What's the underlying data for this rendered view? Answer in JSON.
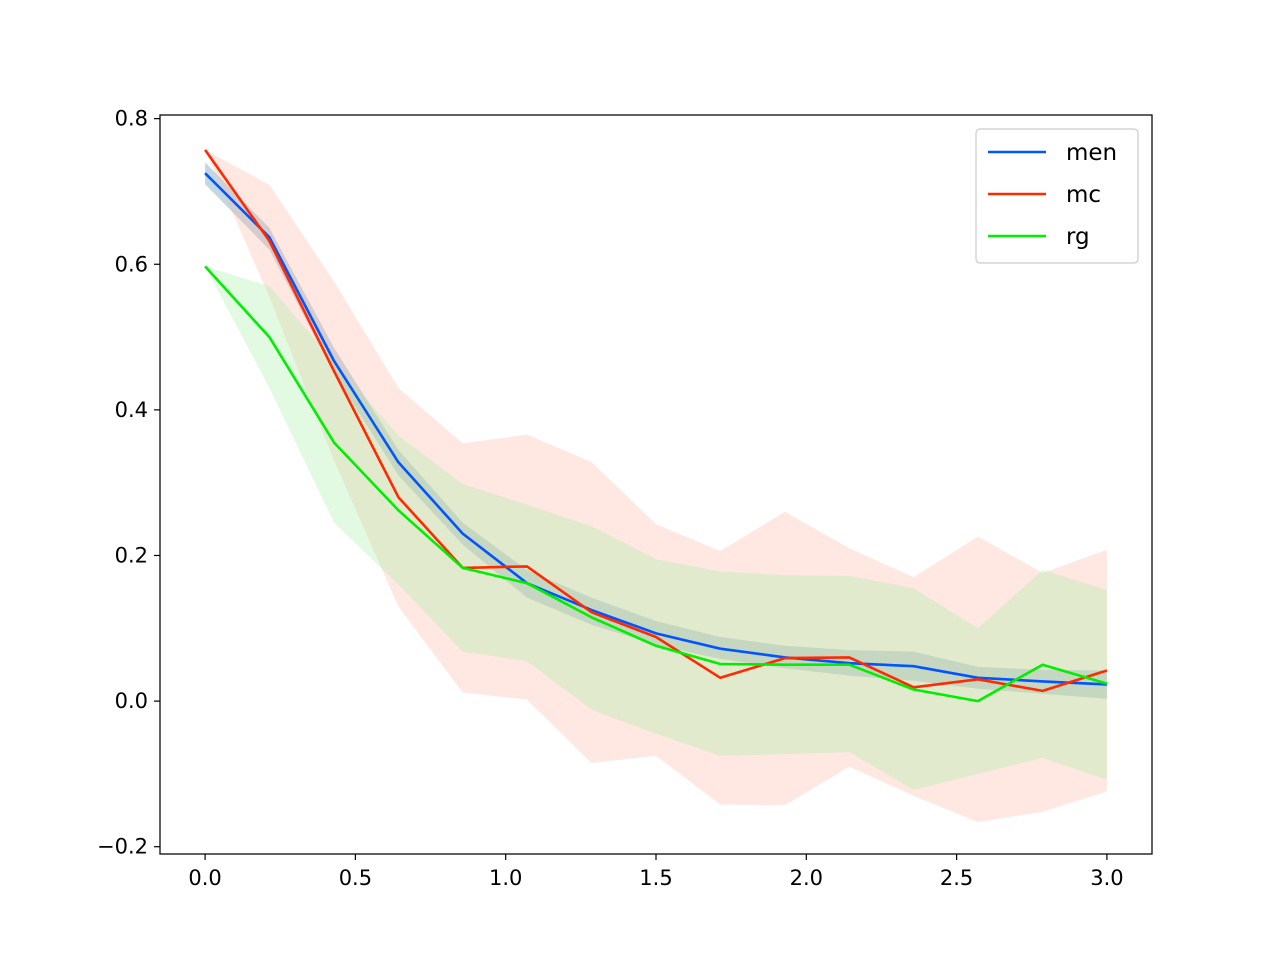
{
  "chart_data": {
    "type": "line",
    "title": "",
    "xlabel": "",
    "ylabel": "",
    "xlim": [
      -0.15,
      3.15
    ],
    "ylim": [
      -0.21,
      0.805
    ],
    "x_ticks": [
      0.0,
      0.5,
      1.0,
      1.5,
      2.0,
      2.5,
      3.0
    ],
    "x_tick_labels": [
      "0.0",
      "0.5",
      "1.0",
      "1.5",
      "2.0",
      "2.5",
      "3.0"
    ],
    "y_ticks": [
      -0.2,
      0.0,
      0.2,
      0.4,
      0.6,
      0.8
    ],
    "y_tick_labels": [
      "−0.2",
      "0.0",
      "0.2",
      "0.4",
      "0.6",
      "0.8"
    ],
    "grid": false,
    "legend_position": "top-right",
    "x": [
      0.0,
      0.214,
      0.429,
      0.643,
      0.857,
      1.071,
      1.286,
      1.5,
      1.714,
      1.929,
      2.143,
      2.357,
      2.571,
      2.786,
      3.0
    ],
    "series": [
      {
        "name": "men",
        "color": "#0055ff",
        "band_color": "#4f8fa8",
        "band_opacity": 0.35,
        "values": [
          0.725,
          0.637,
          0.467,
          0.328,
          0.23,
          0.162,
          0.125,
          0.093,
          0.072,
          0.06,
          0.052,
          0.048,
          0.032,
          0.027,
          0.023
        ],
        "lower": [
          0.71,
          0.62,
          0.45,
          0.31,
          0.215,
          0.142,
          0.105,
          0.077,
          0.058,
          0.045,
          0.035,
          0.028,
          0.017,
          0.01,
          0.003
        ],
        "upper": [
          0.74,
          0.65,
          0.485,
          0.345,
          0.245,
          0.18,
          0.142,
          0.11,
          0.088,
          0.076,
          0.07,
          0.068,
          0.047,
          0.043,
          0.042
        ]
      },
      {
        "name": "mc",
        "color": "#ff2a00",
        "band_color": "#ffb3a6",
        "band_opacity": 0.32,
        "values": [
          0.757,
          0.632,
          0.453,
          0.28,
          0.183,
          0.185,
          0.122,
          0.088,
          0.032,
          0.059,
          0.06,
          0.019,
          0.03,
          0.014,
          0.042
        ],
        "lower": [
          0.757,
          0.555,
          0.33,
          0.13,
          0.012,
          0.002,
          -0.085,
          -0.075,
          -0.142,
          -0.143,
          -0.09,
          -0.13,
          -0.166,
          -0.152,
          -0.124
        ],
        "upper": [
          0.757,
          0.709,
          0.576,
          0.43,
          0.354,
          0.366,
          0.328,
          0.243,
          0.206,
          0.26,
          0.21,
          0.17,
          0.226,
          0.176,
          0.208
        ]
      },
      {
        "name": "rg",
        "color": "#00ee00",
        "band_color": "#a6f0a6",
        "band_opacity": 0.32,
        "values": [
          0.597,
          0.5,
          0.355,
          0.262,
          0.183,
          0.162,
          0.115,
          0.076,
          0.051,
          0.05,
          0.05,
          0.016,
          0.0,
          0.05,
          0.024
        ],
        "lower": [
          0.597,
          0.43,
          0.245,
          0.16,
          0.068,
          0.055,
          -0.012,
          -0.045,
          -0.075,
          -0.073,
          -0.07,
          -0.122,
          -0.1,
          -0.078,
          -0.108
        ],
        "upper": [
          0.597,
          0.57,
          0.466,
          0.365,
          0.298,
          0.27,
          0.24,
          0.195,
          0.178,
          0.173,
          0.172,
          0.155,
          0.1,
          0.18,
          0.153
        ]
      }
    ]
  }
}
